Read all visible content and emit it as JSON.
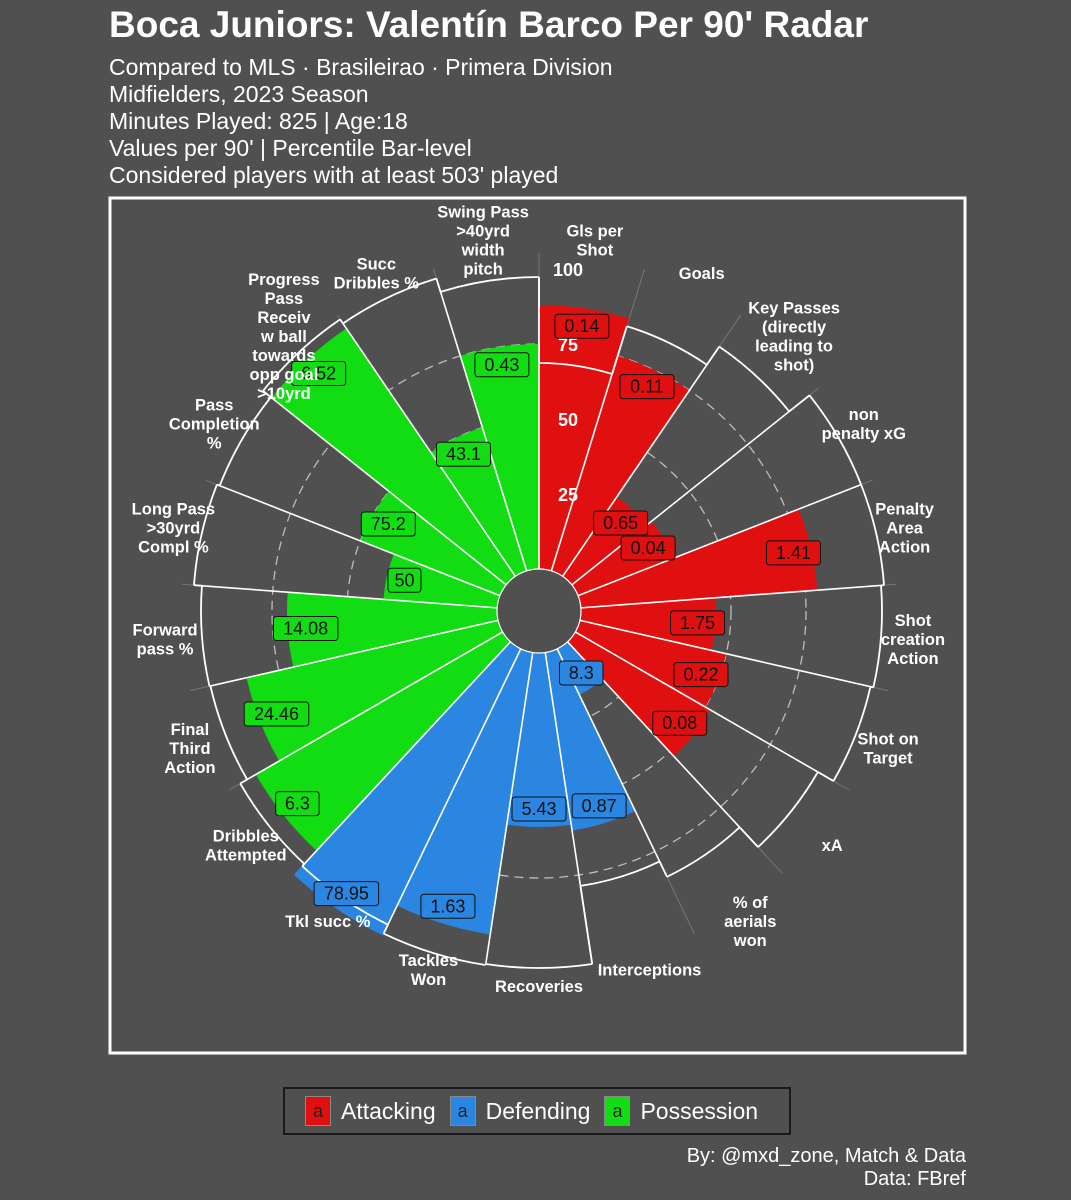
{
  "header": {
    "title": "Boca Juniors: Valentín Barco Per 90' Radar",
    "subtitles": [
      "Compared to MLS · Brasileirao · Primera Division",
      "Midfielders, 2023 Season",
      "Minutes Played: 825 | Age:18",
      "Values per 90' | Percentile Bar-level",
      "Considered players with at least 503' played"
    ]
  },
  "chart_data": {
    "type": "bar",
    "coord": "polar",
    "ylim": [
      0,
      100
    ],
    "radial_ticks": [
      "25",
      "50",
      "75",
      "100"
    ],
    "series": [
      {
        "name": "Attacking",
        "color": "#e01010"
      },
      {
        "name": "Defending",
        "color": "#2a86e0"
      },
      {
        "name": "Possession",
        "color": "#12dc12"
      }
    ],
    "categories": [
      {
        "label": [
          "Gls per",
          "Shot"
        ],
        "group": "Attacking",
        "percentile": 88,
        "value": "0.14"
      },
      {
        "label": [
          "Goals"
        ],
        "group": "Attacking",
        "percentile": 75,
        "value": "0.11"
      },
      {
        "label": [
          "Key Passes",
          "(directly",
          "leading to",
          "shot)"
        ],
        "group": "Attacking",
        "percentile": 32,
        "value": "0.65"
      },
      {
        "label": [
          "non",
          "penalty xG"
        ],
        "group": "Attacking",
        "percentile": 34,
        "value": "0.04"
      },
      {
        "label": [
          "Penalty",
          "Area",
          "Action"
        ],
        "group": "Attacking",
        "percentile": 79,
        "value": "1.41"
      },
      {
        "label": [
          "Shot",
          "creation",
          "Action"
        ],
        "group": "Attacking",
        "percentile": 45,
        "value": "1.75"
      },
      {
        "label": [
          "Shot on",
          "Target"
        ],
        "group": "Attacking",
        "percentile": 50,
        "value": "0.22"
      },
      {
        "label": [
          "xA"
        ],
        "group": "Attacking",
        "percentile": 52,
        "value": "0.08"
      },
      {
        "label": [
          "% of",
          "aerials",
          "won"
        ],
        "group": "Defending",
        "percentile": 0,
        "value": ""
      },
      {
        "label": [
          "Interceptions"
        ],
        "group": "Defending",
        "percentile": 0,
        "value": ""
      },
      {
        "label": [
          "Recoveries"
        ],
        "group": "Defending",
        "percentile": 0,
        "value": ""
      },
      {
        "label": [
          "Tackles",
          "Won"
        ],
        "group": "Defending",
        "percentile": 0,
        "value": ""
      },
      {
        "label": [
          "Tkl succ %"
        ],
        "group": "Defending",
        "percentile": 0,
        "value": ""
      },
      {
        "label": [
          "Dribbles",
          "Attempted"
        ],
        "group": "Possession",
        "percentile": 0,
        "value": ""
      },
      {
        "label": [
          "Final",
          "Third",
          "Action"
        ],
        "group": "Possession",
        "percentile": 0,
        "value": ""
      },
      {
        "label": [
          "Forward",
          "pass %"
        ],
        "group": "Possession",
        "percentile": 0,
        "value": ""
      },
      {
        "label": [
          "Long Pass",
          ">30yrd",
          "Compl %"
        ],
        "group": "Possession",
        "percentile": 0,
        "value": ""
      },
      {
        "label": [
          "Pass",
          "Completion",
          "%"
        ],
        "group": "Possession",
        "percentile": 0,
        "value": ""
      },
      {
        "label": [
          "Progress",
          "Pass",
          "Receiv",
          "w ball",
          "towards",
          "opp goal",
          ">10yrd"
        ],
        "group": "Possession",
        "percentile": 0,
        "value": ""
      },
      {
        "label": [
          "Succ",
          "Dribbles %"
        ],
        "group": "Possession",
        "percentile": 0,
        "value": ""
      },
      {
        "label": [
          "Swing Pass",
          ">40yrd",
          "width",
          "pitch"
        ],
        "group": "Possession",
        "percentile": 0,
        "value": ""
      }
    ],
    "bars": [
      {
        "group": "Attacking",
        "percentile": 88,
        "value": "0.14"
      },
      {
        "group": "Attacking",
        "percentile": 75,
        "value": "0.11"
      },
      {
        "group": "Attacking",
        "percentile": 32,
        "value": "0.65"
      },
      {
        "group": "Attacking",
        "percentile": 34,
        "value": "0.04"
      },
      {
        "group": "Attacking",
        "percentile": 79,
        "value": "1.41"
      },
      {
        "group": "Attacking",
        "percentile": 45,
        "value": "1.75"
      },
      {
        "group": "Attacking",
        "percentile": 50,
        "value": "0.22"
      },
      {
        "group": "Attacking",
        "percentile": 52,
        "value": "0.08"
      },
      {
        "group": "Defending",
        "percentile": 17,
        "value": "8.3"
      },
      {
        "group": "Defending",
        "percentile": 60,
        "value": "0.87"
      },
      {
        "group": "Defending",
        "percentile": 58,
        "value": "5.43"
      },
      {
        "group": "Defending",
        "percentile": 95,
        "value": "1.63"
      },
      {
        "group": "Defending",
        "percentile": 106,
        "value": "78.95"
      },
      {
        "group": "Possession",
        "percentile": 95,
        "value": "6.3"
      },
      {
        "group": "Possession",
        "percentile": 86,
        "value": "24.46"
      },
      {
        "group": "Possession",
        "percentile": 70,
        "value": "14.08"
      },
      {
        "group": "Possession",
        "percentile": 38,
        "value": "50"
      },
      {
        "group": "Possession",
        "percentile": 50,
        "value": "75.2"
      },
      {
        "group": "Possession",
        "percentile": 100,
        "value": "6.52"
      },
      {
        "group": "Possession",
        "percentile": 50,
        "value": "43.1"
      },
      {
        "group": "Possession",
        "percentile": 75,
        "value": "0.43"
      }
    ]
  },
  "legend": [
    {
      "key": "a",
      "label": "Attacking",
      "color": "#e01010"
    },
    {
      "key": "a",
      "label": "Defending",
      "color": "#2a86e0"
    },
    {
      "key": "a",
      "label": "Possession",
      "color": "#12dc12"
    }
  ],
  "credits": [
    "By: @mxd_zone, Match & Data",
    "Data: FBref"
  ]
}
